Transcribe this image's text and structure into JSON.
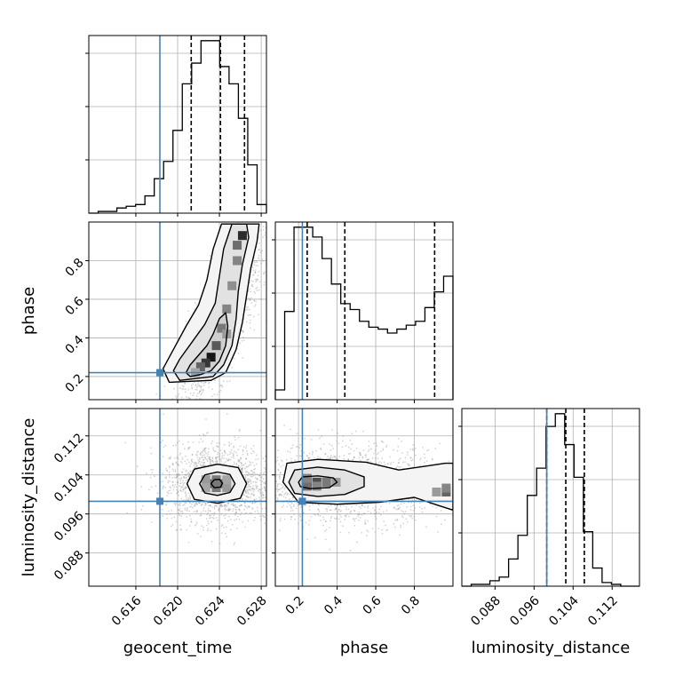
{
  "chart_data": {
    "type": "corner",
    "colors": {
      "injection": "#4682b4",
      "hist": "#000000",
      "grid": "#b0b0b0",
      "density_dark": "#000000",
      "density_light": "#f2f2f2"
    },
    "parameters": [
      {
        "name": "geocent_time",
        "label": "geocent_time",
        "range": [
          0.6115,
          0.6285
        ],
        "ticks": [
          "0.616",
          "0.620",
          "0.624",
          "0.628"
        ],
        "injection": 0.6183,
        "quantiles": [
          0.6213,
          0.6241,
          0.6264
        ],
        "hist_counts": [
          0,
          1,
          1,
          3,
          4,
          5,
          10,
          20,
          30,
          48,
          75,
          87,
          100,
          100,
          85,
          75,
          55,
          28,
          5
        ]
      },
      {
        "name": "phase",
        "label": "phase",
        "range": [
          0.08,
          1.0
        ],
        "ticks": [
          "0.2",
          "0.4",
          "0.6",
          "0.8"
        ],
        "injection": 0.22,
        "quantiles": [
          0.245,
          0.44,
          0.905
        ],
        "hist_counts": [
          5,
          45,
          88,
          88,
          83,
          72,
          59,
          49,
          46,
          40,
          37,
          36,
          34,
          36,
          38,
          40,
          47,
          55,
          63
        ]
      },
      {
        "name": "luminosity_distance",
        "label": "luminosity_distance",
        "range": [
          0.0812,
          0.1176
        ],
        "ticks": [
          "0.088",
          "0.096",
          "0.104",
          "0.112"
        ],
        "injection": 0.0986,
        "quantiles": [
          0.0986,
          0.1025,
          0.1063
        ],
        "hist_counts": [
          0,
          1,
          1,
          3,
          5,
          15,
          28,
          50,
          65,
          88,
          95,
          78,
          60,
          30,
          10,
          2,
          1,
          0,
          0
        ]
      }
    ],
    "pairs": [
      {
        "x": "geocent_time",
        "y": "phase",
        "density_cells": [
          [
            0.6232,
            0.3,
            0.9
          ],
          [
            0.6227,
            0.27,
            0.75
          ],
          [
            0.6222,
            0.25,
            0.55
          ],
          [
            0.6237,
            0.36,
            0.6
          ],
          [
            0.6242,
            0.45,
            0.45
          ],
          [
            0.6247,
            0.55,
            0.4
          ],
          [
            0.6252,
            0.67,
            0.35
          ],
          [
            0.6257,
            0.8,
            0.4
          ],
          [
            0.6262,
            0.93,
            0.8
          ],
          [
            0.6217,
            0.22,
            0.25
          ],
          [
            0.6247,
            0.42,
            0.3
          ],
          [
            0.6257,
            0.88,
            0.5
          ]
        ],
        "contours": [
          [
            [
              0.6212,
              0.2
            ],
            [
              0.6222,
              0.21
            ],
            [
              0.6232,
              0.23
            ],
            [
              0.624,
              0.28
            ],
            [
              0.6246,
              0.36
            ],
            [
              0.6248,
              0.46
            ],
            [
              0.6246,
              0.53
            ],
            [
              0.624,
              0.5
            ],
            [
              0.6234,
              0.42
            ],
            [
              0.6228,
              0.36
            ],
            [
              0.622,
              0.31
            ],
            [
              0.6212,
              0.26
            ],
            [
              0.6208,
              0.22
            ]
          ],
          [
            [
              0.6202,
              0.18
            ],
            [
              0.6218,
              0.19
            ],
            [
              0.6234,
              0.2
            ],
            [
              0.6244,
              0.26
            ],
            [
              0.6252,
              0.36
            ],
            [
              0.6256,
              0.5
            ],
            [
              0.6258,
              0.64
            ],
            [
              0.6262,
              0.78
            ],
            [
              0.6268,
              0.92
            ],
            [
              0.6266,
              0.99
            ],
            [
              0.6252,
              0.99
            ],
            [
              0.6244,
              0.86
            ],
            [
              0.624,
              0.72
            ],
            [
              0.6236,
              0.58
            ],
            [
              0.6226,
              0.47
            ],
            [
              0.6214,
              0.38
            ],
            [
              0.6202,
              0.29
            ],
            [
              0.6196,
              0.23
            ]
          ],
          [
            [
              0.6192,
              0.17
            ],
            [
              0.6212,
              0.175
            ],
            [
              0.6232,
              0.18
            ],
            [
              0.6246,
              0.22
            ],
            [
              0.6256,
              0.34
            ],
            [
              0.6262,
              0.48
            ],
            [
              0.6266,
              0.62
            ],
            [
              0.627,
              0.76
            ],
            [
              0.6276,
              0.9
            ],
            [
              0.6278,
              0.99
            ],
            [
              0.6242,
              0.99
            ],
            [
              0.6234,
              0.86
            ],
            [
              0.6228,
              0.7
            ],
            [
              0.622,
              0.57
            ],
            [
              0.6208,
              0.46
            ],
            [
              0.6196,
              0.34
            ],
            [
              0.6186,
              0.24
            ]
          ]
        ],
        "scatter": {
          "mean": [
            0.624,
            0.45
          ],
          "sd": [
            0.002,
            0.22
          ],
          "corr": 0.78,
          "n": 1600
        }
      },
      {
        "x": "geocent_time",
        "y": "luminosity_distance",
        "density_cells": [
          [
            0.6237,
            0.1022,
            1.0
          ],
          [
            0.6232,
            0.1022,
            0.55
          ],
          [
            0.6242,
            0.1022,
            0.55
          ],
          [
            0.6237,
            0.103,
            0.45
          ],
          [
            0.6237,
            0.1014,
            0.45
          ],
          [
            0.6227,
            0.103,
            0.3
          ],
          [
            0.6247,
            0.1014,
            0.3
          ],
          [
            0.6227,
            0.1014,
            0.25
          ],
          [
            0.6247,
            0.103,
            0.25
          ]
        ],
        "contours": [
          [
            [
              0.6232,
              0.1022
            ],
            [
              0.6235,
              0.103
            ],
            [
              0.624,
              0.1031
            ],
            [
              0.6243,
              0.1023
            ],
            [
              0.6241,
              0.1015
            ],
            [
              0.6235,
              0.1014
            ]
          ],
          [
            [
              0.6221,
              0.1022
            ],
            [
              0.6226,
              0.104
            ],
            [
              0.6238,
              0.1046
            ],
            [
              0.625,
              0.1041
            ],
            [
              0.6255,
              0.1022
            ],
            [
              0.625,
              0.1004
            ],
            [
              0.6238,
              0.0998
            ],
            [
              0.6226,
              0.1003
            ]
          ],
          [
            [
              0.6209,
              0.1022
            ],
            [
              0.6216,
              0.1052
            ],
            [
              0.6238,
              0.1062
            ],
            [
              0.6258,
              0.1055
            ],
            [
              0.6266,
              0.1022
            ],
            [
              0.626,
              0.0992
            ],
            [
              0.6238,
              0.0982
            ],
            [
              0.6216,
              0.099
            ]
          ]
        ],
        "scatter": {
          "mean": [
            0.6238,
            0.1022
          ],
          "sd": [
            0.0026,
            0.004
          ],
          "corr": 0.0,
          "n": 1600
        }
      },
      {
        "x": "phase",
        "y": "luminosity_distance",
        "density_cells": [
          [
            0.245,
            0.1025,
            1.0
          ],
          [
            0.295,
            0.1025,
            0.65
          ],
          [
            0.345,
            0.1025,
            0.45
          ],
          [
            0.395,
            0.1025,
            0.3
          ],
          [
            0.245,
            0.1017,
            0.5
          ],
          [
            0.295,
            0.1017,
            0.4
          ],
          [
            0.245,
            0.1033,
            0.4
          ],
          [
            0.965,
            0.1005,
            0.55
          ],
          [
            0.915,
            0.1005,
            0.3
          ],
          [
            0.965,
            0.1013,
            0.4
          ]
        ],
        "contours": [
          [
            [
              0.2,
              0.1025
            ],
            [
              0.22,
              0.1036
            ],
            [
              0.3,
              0.1038
            ],
            [
              0.38,
              0.1034
            ],
            [
              0.4,
              0.1025
            ],
            [
              0.36,
              0.1014
            ],
            [
              0.26,
              0.1012
            ],
            [
              0.21,
              0.1016
            ]
          ],
          [
            [
              0.15,
              0.1025
            ],
            [
              0.18,
              0.105
            ],
            [
              0.3,
              0.1056
            ],
            [
              0.44,
              0.105
            ],
            [
              0.54,
              0.1036
            ],
            [
              0.54,
              0.1016
            ],
            [
              0.44,
              0.1
            ],
            [
              0.3,
              0.0996
            ],
            [
              0.18,
              0.1002
            ]
          ],
          [
            [
              0.12,
              0.1025
            ],
            [
              0.14,
              0.1064
            ],
            [
              0.3,
              0.1072
            ],
            [
              0.55,
              0.1066
            ],
            [
              0.72,
              0.105
            ],
            [
              0.86,
              0.1058
            ],
            [
              0.96,
              0.1064
            ],
            [
              1.0,
              0.1064
            ],
            [
              1.0,
              0.0968
            ],
            [
              0.92,
              0.0978
            ],
            [
              0.8,
              0.0994
            ],
            [
              0.62,
              0.0984
            ],
            [
              0.4,
              0.098
            ],
            [
              0.2,
              0.0984
            ]
          ]
        ],
        "scatter": {
          "mean": [
            0.45,
            0.102
          ],
          "sd": [
            0.26,
            0.004
          ],
          "corr": 0.0,
          "n": 1600
        }
      }
    ]
  }
}
